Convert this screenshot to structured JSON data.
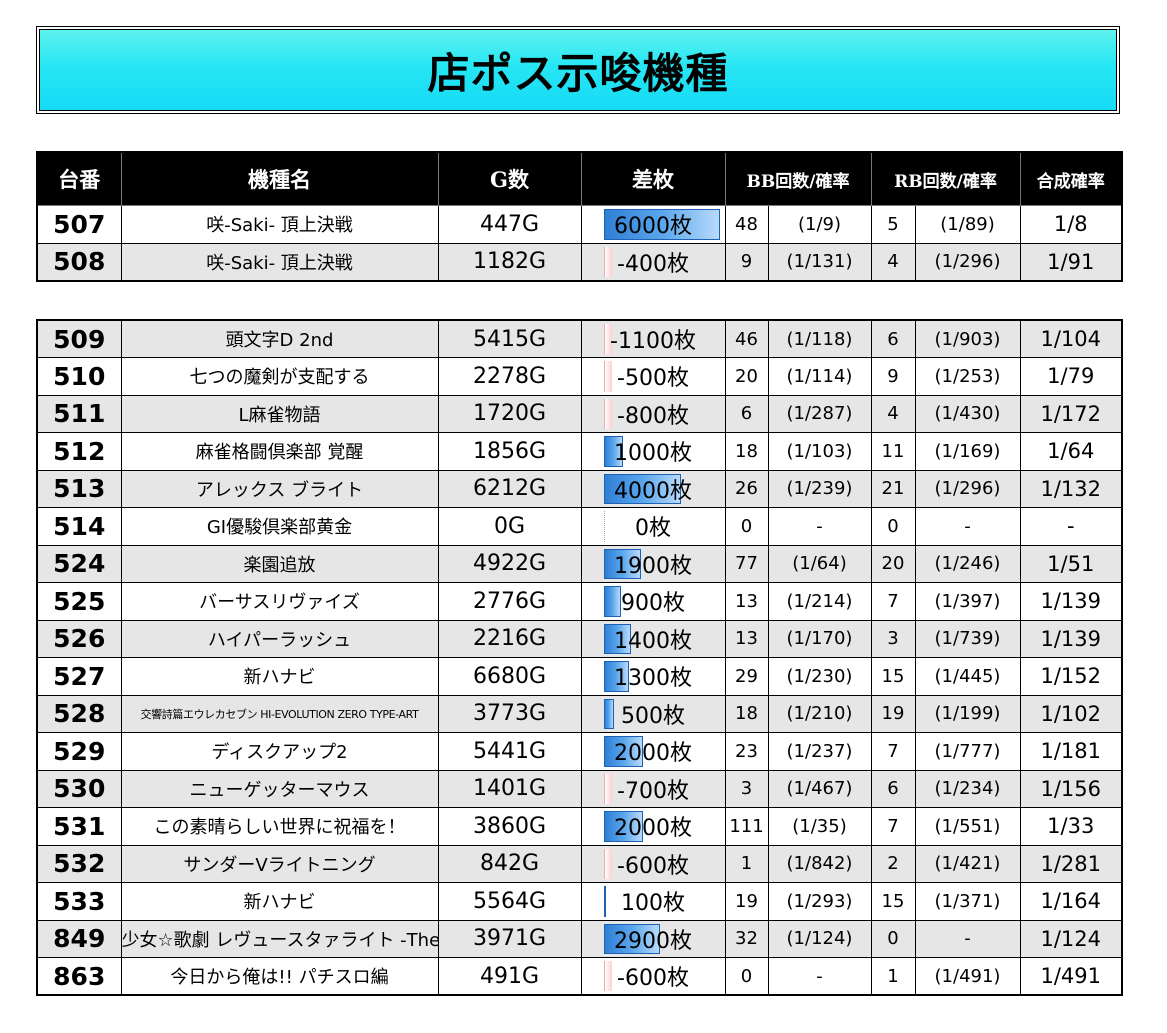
{
  "title": "店ポス示唆機種",
  "headers": [
    "台番",
    "機種名",
    "G数",
    "差枚",
    "BB回数/確率",
    "RB回数/確率",
    "合成確率"
  ],
  "group1": [
    {
      "no": "507",
      "name": "咲-Saki- 頂上決戦",
      "games": "447G",
      "diff": "6000枚",
      "diff_value": 6000,
      "bb": "48",
      "bb_prob": "(1/9)",
      "rb": "5",
      "rb_prob": "(1/89)",
      "combined": "1/8"
    },
    {
      "no": "508",
      "name": "咲-Saki- 頂上決戦",
      "games": "1182G",
      "diff": "-400枚",
      "diff_value": -400,
      "bb": "9",
      "bb_prob": "(1/131)",
      "rb": "4",
      "rb_prob": "(1/296)",
      "combined": "1/91"
    }
  ],
  "group2": [
    {
      "no": "509",
      "name": "頭文字D 2nd",
      "games": "5415G",
      "diff": "-1100枚",
      "diff_value": -1100,
      "bb": "46",
      "bb_prob": "(1/118)",
      "rb": "6",
      "rb_prob": "(1/903)",
      "combined": "1/104"
    },
    {
      "no": "510",
      "name": "七つの魔剣が支配する",
      "games": "2278G",
      "diff": "-500枚",
      "diff_value": -500,
      "bb": "20",
      "bb_prob": "(1/114)",
      "rb": "9",
      "rb_prob": "(1/253)",
      "combined": "1/79"
    },
    {
      "no": "511",
      "name": "L麻雀物語",
      "games": "1720G",
      "diff": "-800枚",
      "diff_value": -800,
      "bb": "6",
      "bb_prob": "(1/287)",
      "rb": "4",
      "rb_prob": "(1/430)",
      "combined": "1/172"
    },
    {
      "no": "512",
      "name": "麻雀格闘倶楽部 覚醒",
      "games": "1856G",
      "diff": "1000枚",
      "diff_value": 1000,
      "bb": "18",
      "bb_prob": "(1/103)",
      "rb": "11",
      "rb_prob": "(1/169)",
      "combined": "1/64"
    },
    {
      "no": "513",
      "name": "アレックス ブライト",
      "games": "6212G",
      "diff": "4000枚",
      "diff_value": 4000,
      "bb": "26",
      "bb_prob": "(1/239)",
      "rb": "21",
      "rb_prob": "(1/296)",
      "combined": "1/132"
    },
    {
      "no": "514",
      "name": "GI優駿倶楽部黄金",
      "games": "0G",
      "diff": "0枚",
      "diff_value": 0,
      "bb": "0",
      "bb_prob": "-",
      "rb": "0",
      "rb_prob": "-",
      "combined": "-"
    },
    {
      "no": "524",
      "name": "楽園追放",
      "games": "4922G",
      "diff": "1900枚",
      "diff_value": 1900,
      "bb": "77",
      "bb_prob": "(1/64)",
      "rb": "20",
      "rb_prob": "(1/246)",
      "combined": "1/51"
    },
    {
      "no": "525",
      "name": "バーサスリヴァイズ",
      "games": "2776G",
      "diff": "900枚",
      "diff_value": 900,
      "bb": "13",
      "bb_prob": "(1/214)",
      "rb": "7",
      "rb_prob": "(1/397)",
      "combined": "1/139"
    },
    {
      "no": "526",
      "name": "ハイパーラッシュ",
      "games": "2216G",
      "diff": "1400枚",
      "diff_value": 1400,
      "bb": "13",
      "bb_prob": "(1/170)",
      "rb": "3",
      "rb_prob": "(1/739)",
      "combined": "1/139"
    },
    {
      "no": "527",
      "name": "新ハナビ",
      "games": "6680G",
      "diff": "1300枚",
      "diff_value": 1300,
      "bb": "29",
      "bb_prob": "(1/230)",
      "rb": "15",
      "rb_prob": "(1/445)",
      "combined": "1/152"
    },
    {
      "no": "528",
      "name": "交響詩篇エウレカセブン HI-EVOLUTION ZERO TYPE-ART",
      "games": "3773G",
      "diff": "500枚",
      "diff_value": 500,
      "bb": "18",
      "bb_prob": "(1/210)",
      "rb": "19",
      "rb_prob": "(1/199)",
      "combined": "1/102"
    },
    {
      "no": "529",
      "name": "ディスクアップ2",
      "games": "5441G",
      "diff": "2000枚",
      "diff_value": 2000,
      "bb": "23",
      "bb_prob": "(1/237)",
      "rb": "7",
      "rb_prob": "(1/777)",
      "combined": "1/181"
    },
    {
      "no": "530",
      "name": "ニューゲッターマウス",
      "games": "1401G",
      "diff": "-700枚",
      "diff_value": -700,
      "bb": "3",
      "bb_prob": "(1/467)",
      "rb": "6",
      "rb_prob": "(1/234)",
      "combined": "1/156"
    },
    {
      "no": "531",
      "name": "この素晴らしい世界に祝福を！",
      "games": "3860G",
      "diff": "2000枚",
      "diff_value": 2000,
      "bb": "111",
      "bb_prob": "(1/35)",
      "rb": "7",
      "rb_prob": "(1/551)",
      "combined": "1/33"
    },
    {
      "no": "532",
      "name": "サンダーVライトニング",
      "games": "842G",
      "diff": "-600枚",
      "diff_value": -600,
      "bb": "1",
      "bb_prob": "(1/842)",
      "rb": "2",
      "rb_prob": "(1/421)",
      "combined": "1/281"
    },
    {
      "no": "533",
      "name": "新ハナビ",
      "games": "5564G",
      "diff": "100枚",
      "diff_value": 100,
      "bb": "19",
      "bb_prob": "(1/293)",
      "rb": "15",
      "rb_prob": "(1/371)",
      "combined": "1/164"
    },
    {
      "no": "849",
      "name": "少女☆歌劇 レヴュースタァライト -The SLOT-",
      "games": "3971G",
      "diff": "2900枚",
      "diff_value": 2900,
      "bb": "32",
      "bb_prob": "(1/124)",
      "rb": "0",
      "rb_prob": "-",
      "combined": "1/124"
    },
    {
      "no": "863",
      "name": "今日から俺は!! パチスロ編",
      "games": "491G",
      "diff": "-600枚",
      "diff_value": -600,
      "bb": "0",
      "bb_prob": "-",
      "rb": "1",
      "rb_prob": "(1/491)",
      "combined": "1/491"
    }
  ]
}
